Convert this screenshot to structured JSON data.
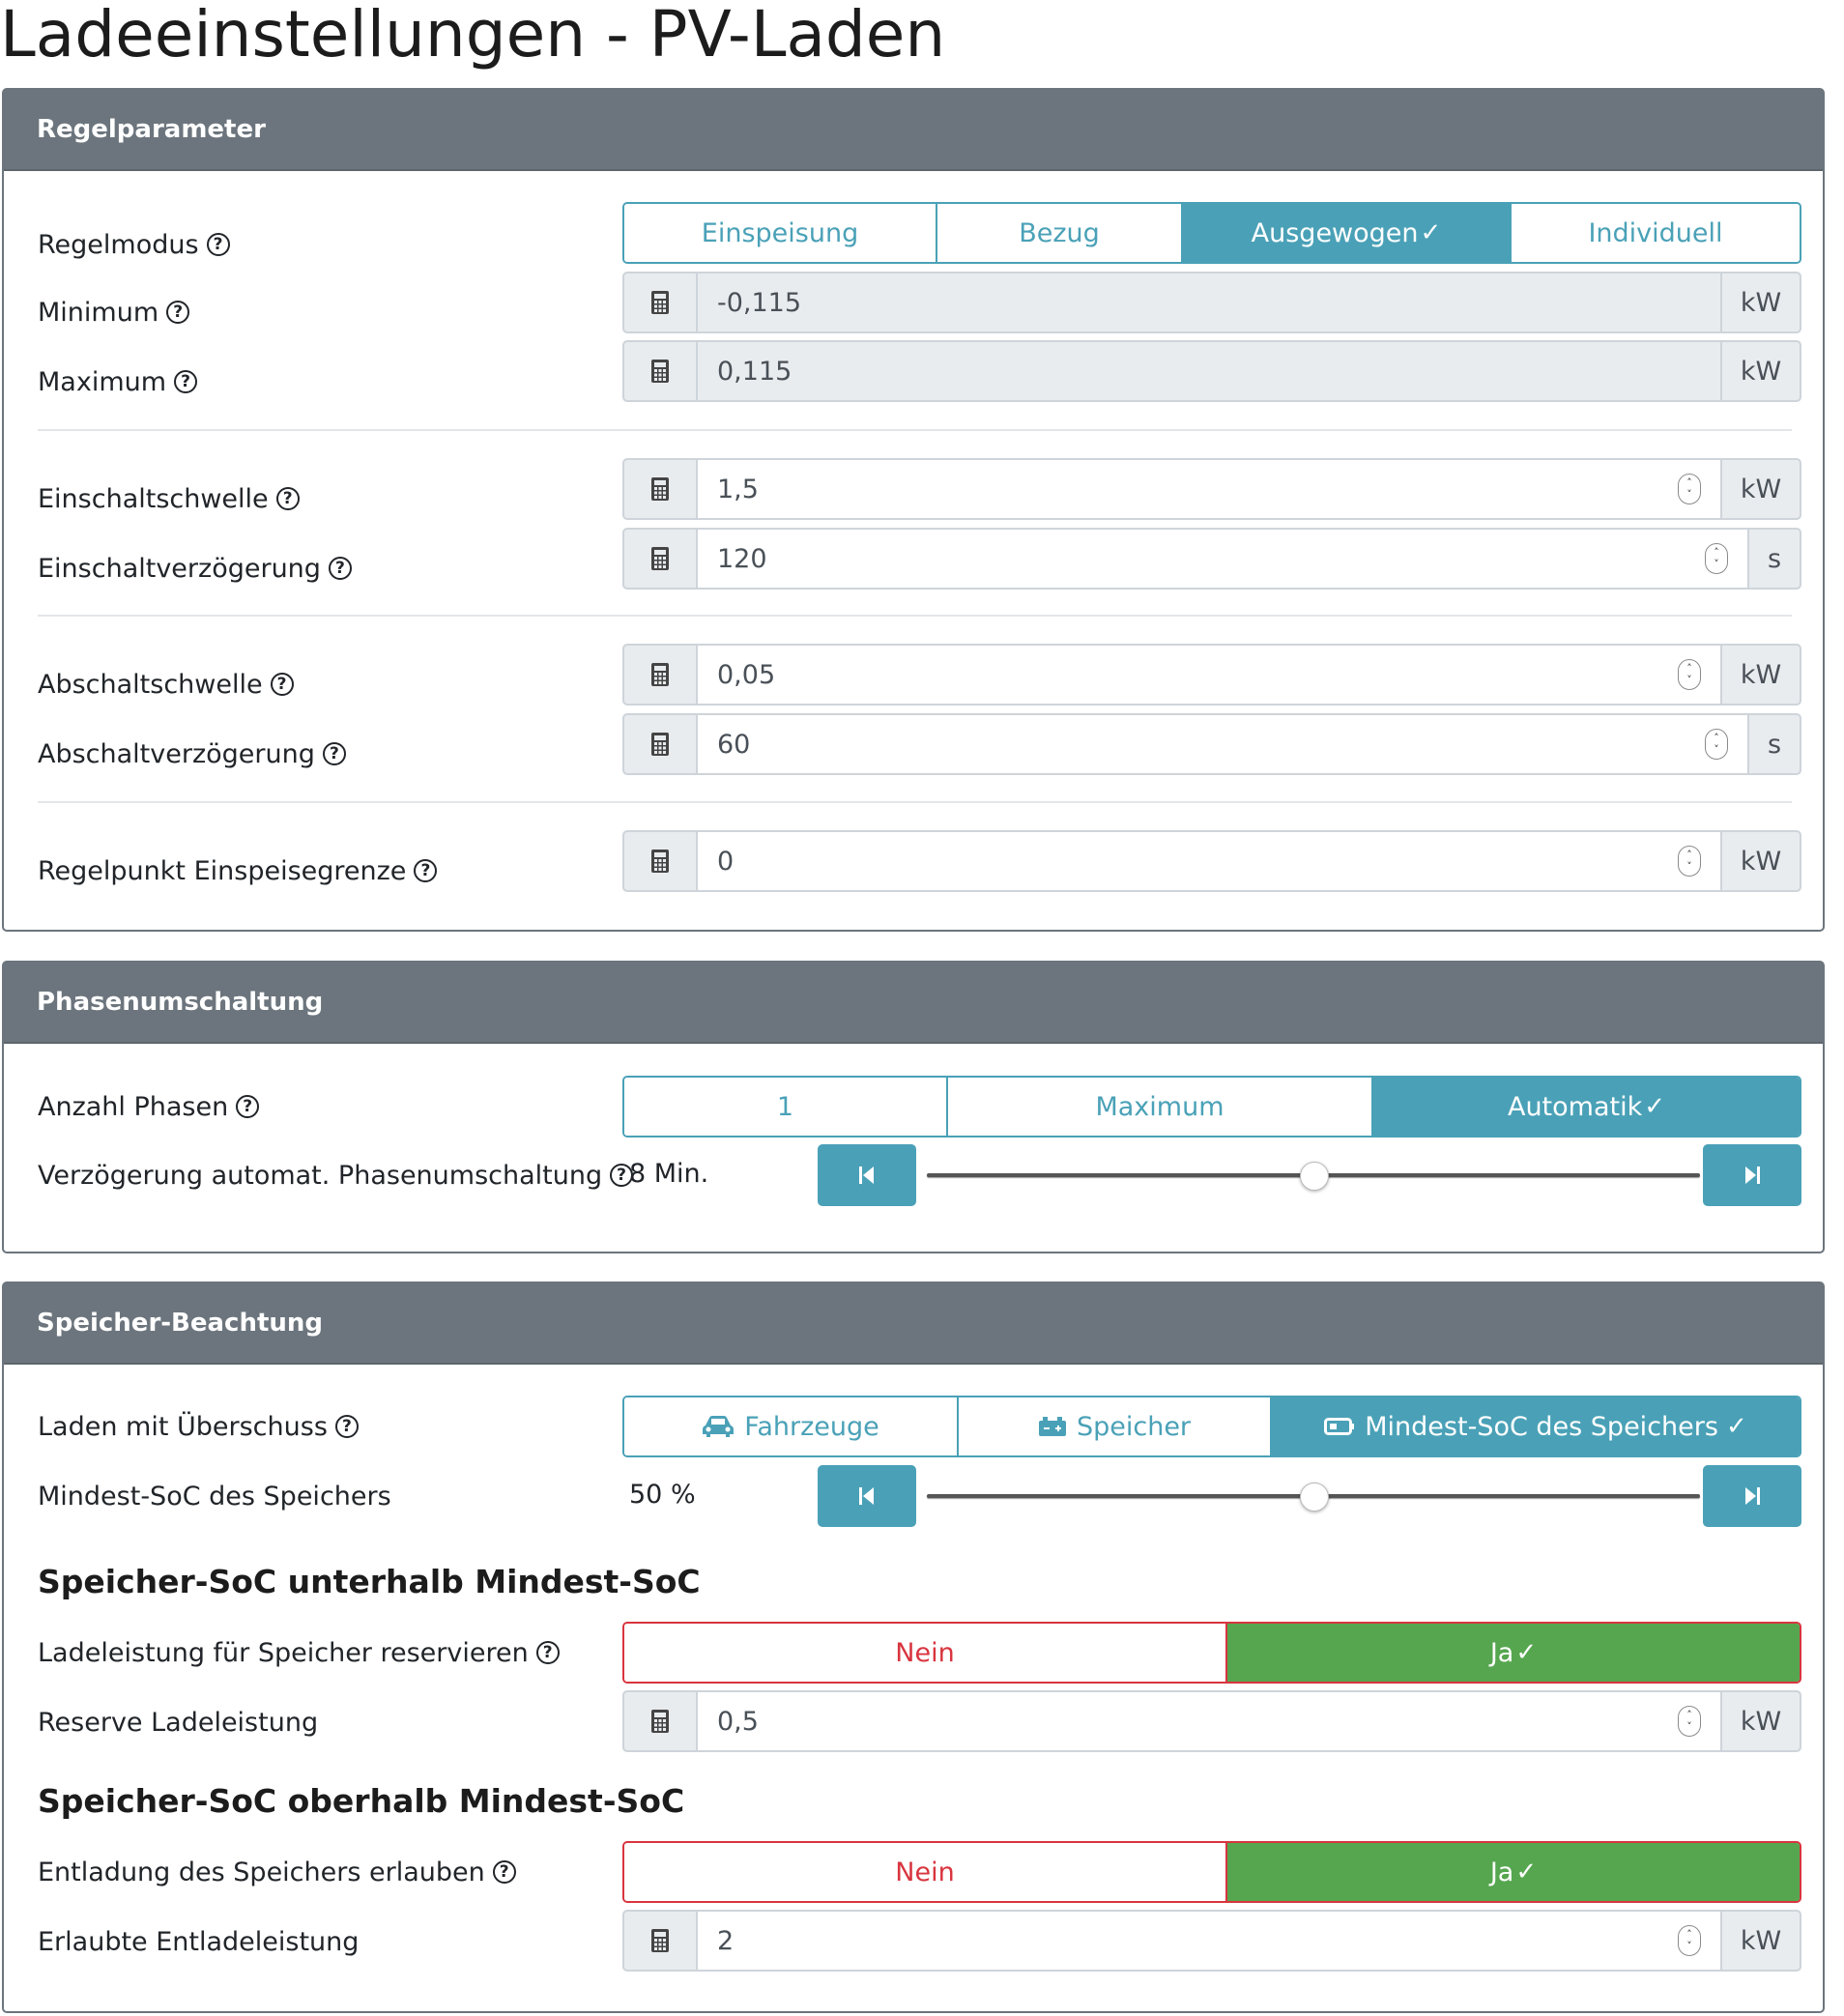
{
  "page": {
    "title": "Ladeeinstellungen - PV-Laden"
  },
  "regelparameter": {
    "header": "Regelparameter",
    "regelmodus": {
      "label": "Regelmodus",
      "options": [
        "Einspeisung",
        "Bezug",
        "Ausgewogen",
        "Individuell"
      ],
      "selected": "Ausgewogen"
    },
    "minimum": {
      "label": "Minimum",
      "value": "-0,115",
      "unit": "kW"
    },
    "maximum": {
      "label": "Maximum",
      "value": "0,115",
      "unit": "kW"
    },
    "einschaltschwelle": {
      "label": "Einschaltschwelle",
      "value": "1,5",
      "unit": "kW"
    },
    "einschaltverzoegerung": {
      "label": "Einschaltverzögerung",
      "value": "120",
      "unit": "s"
    },
    "abschaltschwelle": {
      "label": "Abschaltschwelle",
      "value": "0,05",
      "unit": "kW"
    },
    "abschaltverzoegerung": {
      "label": "Abschaltverzögerung",
      "value": "60",
      "unit": "s"
    },
    "regelpunkt": {
      "label": "Regelpunkt Einspeisegrenze",
      "value": "0",
      "unit": "kW"
    }
  },
  "phasenumschaltung": {
    "header": "Phasenumschaltung",
    "anzahl_phasen": {
      "label": "Anzahl Phasen",
      "options": [
        "1",
        "Maximum",
        "Automatik"
      ],
      "selected": "Automatik"
    },
    "verzoegerung": {
      "label": "Verzögerung automat. Phasenumschaltung",
      "value_text": "8 Min.",
      "slider_fraction": 0.5
    }
  },
  "speicher": {
    "header": "Speicher-Beachtung",
    "laden_mit_ueberschuss": {
      "label": "Laden mit Überschuss",
      "options": [
        "Fahrzeuge",
        "Speicher",
        "Mindest-SoC des Speichers"
      ],
      "icons": [
        "car-icon",
        "battery-car-icon",
        "battery-icon"
      ],
      "selected": "Mindest-SoC des Speichers"
    },
    "mindest_soc": {
      "label": "Mindest-SoC des Speichers",
      "value_text": "50 %",
      "slider_fraction": 0.5
    },
    "unterhalb_heading": "Speicher-SoC unterhalb Mindest-SoC",
    "ladeleistung_reservieren": {
      "label": "Ladeleistung für Speicher reservieren",
      "no": "Nein",
      "yes": "Ja",
      "selected": "Ja"
    },
    "reserve_ladeleistung": {
      "label": "Reserve Ladeleistung",
      "value": "0,5",
      "unit": "kW"
    },
    "oberhalb_heading": "Speicher-SoC oberhalb Mindest-SoC",
    "entladung_erlauben": {
      "label": "Entladung des Speichers erlauben",
      "no": "Nein",
      "yes": "Ja",
      "selected": "Ja"
    },
    "erlaubte_entladeleistung": {
      "label": "Erlaubte Entladeleistung",
      "value": "2",
      "unit": "kW"
    }
  },
  "colors": {
    "header_bg": "#6c757d",
    "accent": "#4aa1b7",
    "danger": "#d8353f",
    "success": "#56a64f",
    "addon_bg": "#e9ecef"
  }
}
